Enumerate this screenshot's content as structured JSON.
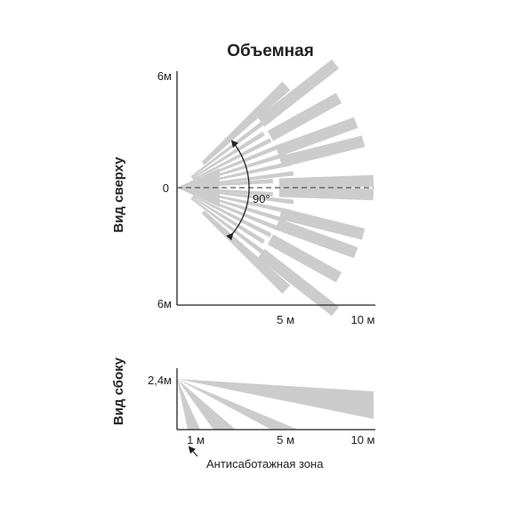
{
  "title": "Объемная",
  "colors": {
    "beam": "#cccccc",
    "axis": "#222222",
    "text": "#222222"
  },
  "top_view": {
    "label": "Вид сверху",
    "y_ticks": {
      "top": "6м",
      "center": "0",
      "bottom": "6м"
    },
    "x_ticks": [
      "5 м",
      "10 м"
    ],
    "angle_label": "90°"
  },
  "side_view": {
    "label": "Вид сбоку",
    "height_label": "2,4м",
    "x_ticks": [
      "1 м",
      "5 м",
      "10 м"
    ],
    "note": "Антисаботажная зона"
  }
}
